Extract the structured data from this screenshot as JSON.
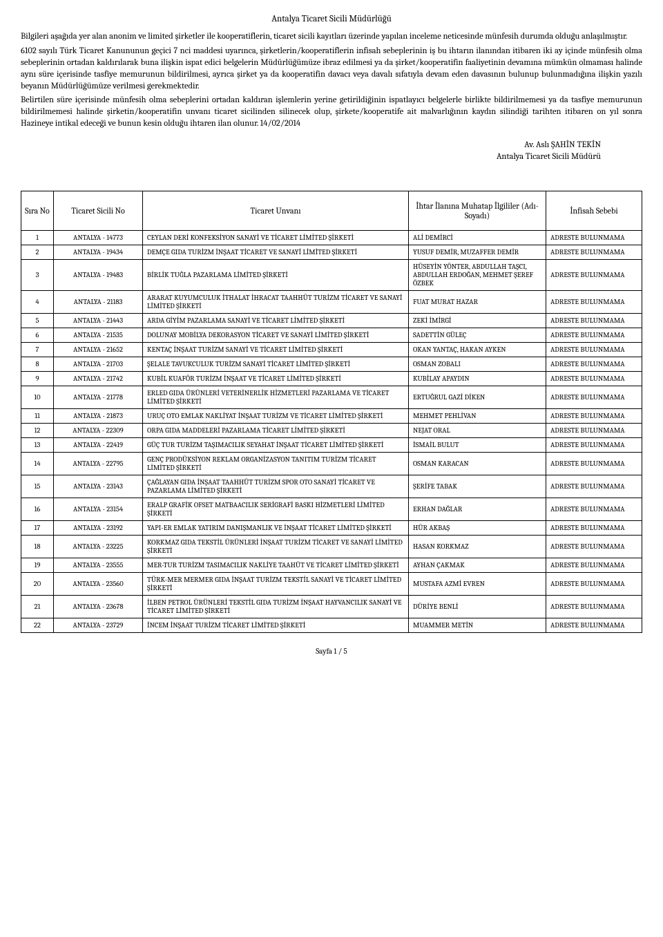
{
  "header": {
    "title": "Antalya Ticaret Sicili Müdürlüğü"
  },
  "paragraphs": {
    "p1": "Bilgileri aşağıda yer alan anonim ve limited şirketler ile kooperatiflerin, ticaret sicili kayıtları üzerinde yapılan inceleme neticesinde münfesih durumda olduğu anlaşılmıştır.",
    "p2": "6102 sayılı Türk Ticaret Kanununun geçici 7 nci maddesi uyarınca, şirketlerin/kooperatiflerin infisah sebeplerinin iş bu ihtarın ilanından itibaren iki ay içinde münfesih olma sebeplerinin ortadan kaldırılarak buna ilişkin ispat edici belgelerin Müdürlüğümüze ibraz edilmesi ya da şirket/kooperatifin faaliyetinin devamına mümkün olmaması halinde aynı süre içerisinde tasfiye memurunun bildirilmesi, ayrıca şirket ya da kooperatifin davacı veya davalı sıfatıyla devam eden davasının bulunup bulunmadığına ilişkin yazılı beyanın Müdürlüğümüze verilmesi gerekmektedir.",
    "p3": "Belirtilen süre içerisinde münfesih olma sebeplerini ortadan kaldıran işlemlerin yerine getirildiğinin ispatlayıcı belgelerle birlikte bildirilmemesi ya da tasfiye memurunun bildirilmemesi halinde şirketin/kooperatifin unvanı ticaret sicilinden silinecek olup, şirkete/kooperatife ait malvarlığının kaydın silindiği tarihten itibaren on yıl sonra Hazineye intikal edeceği ve bunun kesin olduğu ihtaren ilan olunur. 14/02/2014"
  },
  "signature": {
    "line1": "Av. Aslı ŞAHİN TEKİN",
    "line2": "Antalya Ticaret Sicili Müdürü"
  },
  "table": {
    "headers": {
      "sira": "Sıra No",
      "sicil": "Ticaret Sicili No",
      "unvan": "Ticaret Unvanı",
      "ilgili": "İhtar İlanına Muhatap İlgililer (Adı-Soyadı)",
      "sebep": "İnfisah Sebebi"
    },
    "rows": [
      {
        "n": "1",
        "s": "ANTALYA - 14773",
        "u": "CEYLAN DERİ KONFEKSİYON SANAYİ VE TİCARET LİMİTED ŞİRKETİ",
        "i": "ALİ DEMİRCİ",
        "r": "ADRESTE BULUNMAMA"
      },
      {
        "n": "2",
        "s": "ANTALYA - 19434",
        "u": "DEMÇE GIDA TURİZM İNŞAAT TİCARET VE SANAYİ LİMİTED ŞİRKETİ",
        "i": "YUSUF DEMİR, MUZAFFER DEMİR",
        "r": "ADRESTE BULUNMAMA"
      },
      {
        "n": "3",
        "s": "ANTALYA - 19483",
        "u": "BİRLİK TUĞLA PAZARLAMA LİMİTED ŞİRKETİ",
        "i": "HÜSEYİN YÖNTER, ABDULLAH TAŞCI, ABDULLAH ERDOĞAN, MEHMET ŞEREF ÖZBEK",
        "r": "ADRESTE BULUNMAMA"
      },
      {
        "n": "4",
        "s": "ANTALYA - 21183",
        "u": "ARARAT KUYUMCULUK İTHALAT İHRACAT TAAHHÜT TURİZM TİCARET VE SANAYİ LİMİTED ŞİRKETİ",
        "i": "FUAT MURAT HAZAR",
        "r": "ADRESTE BULUNMAMA"
      },
      {
        "n": "5",
        "s": "ANTALYA - 21443",
        "u": "ARDA GİYİM PAZARLAMA SANAYİ VE TİCARET LİMİTED ŞİRKETİ",
        "i": "ZEKİ İMİRGİ",
        "r": "ADRESTE BULUNMAMA"
      },
      {
        "n": "6",
        "s": "ANTALYA - 21535",
        "u": "DOLUNAY MOBİLYA DEKORASYON TİCARET VE SANAYİ LİMİTED ŞİRKETİ",
        "i": "SADETTİN GÜLEÇ",
        "r": "ADRESTE BULUNMAMA"
      },
      {
        "n": "7",
        "s": "ANTALYA - 21652",
        "u": "KENTAÇ İNŞAAT TURİZM SANAYİ VE TİCARET LİMİTED ŞİRKETİ",
        "i": "OKAN YANTAÇ, HAKAN AYKEN",
        "r": "ADRESTE BULUNMAMA"
      },
      {
        "n": "8",
        "s": "ANTALYA - 21703",
        "u": "ŞELALE TAVUKCULUK TURİZM SANAYİ TİCARET LİMİTED ŞİRKETİ",
        "i": "OSMAN ZOBALI",
        "r": "ADRESTE BULUNMAMA"
      },
      {
        "n": "9",
        "s": "ANTALYA - 21742",
        "u": "KUBİL KUAFÖR TURİZM İNŞAAT VE TİCARET LİMİTED ŞİRKETİ",
        "i": "KUBİLAY APAYDIN",
        "r": "ADRESTE BULUNMAMA"
      },
      {
        "n": "10",
        "s": "ANTALYA - 21778",
        "u": "ERLED GIDA ÜRÜNLERİ VETERİNERLİK HİZMETLERİ PAZARLAMA VE TİCARET LİMİTED ŞİRKETİ",
        "i": "ERTUĞRUL GAZİ DİKEN",
        "r": "ADRESTE BULUNMAMA"
      },
      {
        "n": "11",
        "s": "ANTALYA - 21873",
        "u": "URUÇ OTO EMLAK NAKLİYAT İNŞAAT TURİZM VE TİCARET LİMİTED ŞİRKETİ",
        "i": "MEHMET PEHLİVAN",
        "r": "ADRESTE BULUNMAMA"
      },
      {
        "n": "12",
        "s": "ANTALYA - 22309",
        "u": "ORPA GIDA MADDELERİ PAZARLAMA TİCARET LİMİTED ŞİRKETİ",
        "i": "NEJAT ORAL",
        "r": "ADRESTE BULUNMAMA"
      },
      {
        "n": "13",
        "s": "ANTALYA - 22419",
        "u": "GÜÇ TUR TURİZM TAŞIMACILIK SEYAHAT İNŞAAT TİCARET LİMİTED ŞİRKETİ",
        "i": "İSMAİL BULUT",
        "r": "ADRESTE BULUNMAMA"
      },
      {
        "n": "14",
        "s": "ANTALYA - 22795",
        "u": "GENÇ PRODÜKSİYON REKLAM ORGANİZASYON TANITIM TURİZM TİCARET LİMİTED ŞİRKETİ",
        "i": "OSMAN KARACAN",
        "r": "ADRESTE BULUNMAMA"
      },
      {
        "n": "15",
        "s": "ANTALYA - 23143",
        "u": "ÇAĞLAYAN GIDA İNŞAAT TAAHHÜT TURİZM SPOR OTO SANAYİ TİCARET VE PAZARLAMA LİMİTED ŞİRKETİ",
        "i": "ŞERİFE TABAK",
        "r": "ADRESTE BULUNMAMA"
      },
      {
        "n": "16",
        "s": "ANTALYA - 23154",
        "u": "ERALP GRAFİK OFSET MATBAACILIK SERİGRAFİ BASKI HİZMETLERİ LİMİTED ŞİRKETİ",
        "i": "ERHAN DAĞLAR",
        "r": "ADRESTE BULUNMAMA"
      },
      {
        "n": "17",
        "s": "ANTALYA - 23192",
        "u": "YAPI-ER EMLAK YATIRIM DANIŞMANLIK VE İNŞAAT TİCARET LİMİTED ŞİRKETİ",
        "i": "HÜR AKBAŞ",
        "r": "ADRESTE BULUNMAMA"
      },
      {
        "n": "18",
        "s": "ANTALYA - 23225",
        "u": "KORKMAZ GIDA TEKSTİL ÜRÜNLERİ İNŞAAT TURİZM TİCARET VE SANAYİ LİMİTED ŞİRKETİ",
        "i": "HASAN KORKMAZ",
        "r": "ADRESTE BULUNMAMA"
      },
      {
        "n": "19",
        "s": "ANTALYA - 23555",
        "u": "MER-TUR TURİZM TASIMACILIK NAKLİYE TAAHÜT VE TİCARET LİMİTED ŞİRKETİ",
        "i": "AYHAN ÇAKMAK",
        "r": "ADRESTE BULUNMAMA"
      },
      {
        "n": "20",
        "s": "ANTALYA - 23560",
        "u": "TÜRK-MER MERMER GIDA İNŞAAT TURİZM TEKSTİL SANAYİ VE TİCARET LİMİTED ŞİRKETİ",
        "i": "MUSTAFA AZMİ EVREN",
        "r": "ADRESTE BULUNMAMA"
      },
      {
        "n": "21",
        "s": "ANTALYA - 23678",
        "u": "İLBEN PETROL ÜRÜNLERİ TEKSTİL GIDA TURİZM İNŞAAT HAYVANCILIK SANAYİ VE TİCARET LİMİTED ŞİRKETİ",
        "i": "DÜRİYE BENLİ",
        "r": "ADRESTE BULUNMAMA"
      },
      {
        "n": "22",
        "s": "ANTALYA - 23729",
        "u": "İNCEM İNŞAAT TURİZM TİCARET LİMİTED ŞİRKETİ",
        "i": "MUAMMER METİN",
        "r": "ADRESTE BULUNMAMA"
      }
    ]
  },
  "footer": {
    "page": "Sayfa 1 / 5"
  }
}
